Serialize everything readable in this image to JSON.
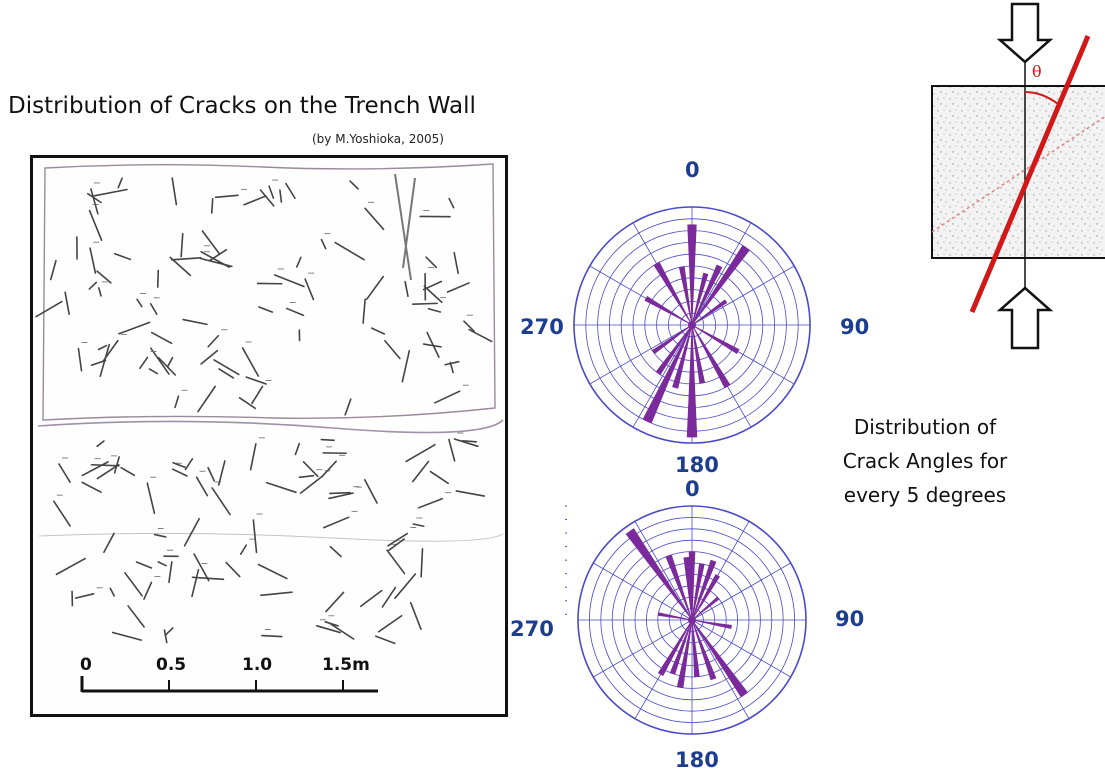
{
  "title": "Distribution of Cracks on the Trench Wall",
  "credit": "(by M.Yoshioka, 2005)",
  "scale_bar": {
    "labels": [
      "0",
      "0.5",
      "1.0",
      "1.5m"
    ]
  },
  "rose_diagrams": [
    {
      "id": "upper",
      "labels": {
        "top": "0",
        "right": "90",
        "bottom": "180",
        "left": "270"
      },
      "petals": [
        {
          "angle": 0,
          "length": 0.85
        },
        {
          "angle": 15,
          "length": 0.45
        },
        {
          "angle": 25,
          "length": 0.55
        },
        {
          "angle": 35,
          "length": 0.8
        },
        {
          "angle": 55,
          "length": 0.35
        },
        {
          "angle": 120,
          "length": 0.45
        },
        {
          "angle": 150,
          "length": 0.6
        },
        {
          "angle": 170,
          "length": 0.5
        },
        {
          "angle": 180,
          "length": 0.95
        },
        {
          "angle": 195,
          "length": 0.55
        },
        {
          "angle": 205,
          "length": 0.9
        },
        {
          "angle": 215,
          "length": 0.5
        },
        {
          "angle": 235,
          "length": 0.4
        },
        {
          "angle": 300,
          "length": 0.45
        },
        {
          "angle": 330,
          "length": 0.6
        },
        {
          "angle": 350,
          "length": 0.5
        }
      ]
    },
    {
      "id": "lower",
      "labels": {
        "top": "0",
        "right": "90",
        "bottom": "180",
        "left": "270"
      },
      "petals": [
        {
          "angle": 0,
          "length": 0.6
        },
        {
          "angle": 10,
          "length": 0.5
        },
        {
          "angle": 20,
          "length": 0.55
        },
        {
          "angle": 30,
          "length": 0.45
        },
        {
          "angle": 50,
          "length": 0.3
        },
        {
          "angle": 100,
          "length": 0.35
        },
        {
          "angle": 145,
          "length": 0.8
        },
        {
          "angle": 160,
          "length": 0.55
        },
        {
          "angle": 175,
          "length": 0.5
        },
        {
          "angle": 190,
          "length": 0.6
        },
        {
          "angle": 200,
          "length": 0.5
        },
        {
          "angle": 210,
          "length": 0.55
        },
        {
          "angle": 280,
          "length": 0.3
        },
        {
          "angle": 325,
          "length": 0.95
        },
        {
          "angle": 340,
          "length": 0.6
        },
        {
          "angle": 355,
          "length": 0.55
        }
      ]
    }
  ],
  "caption": {
    "line1": "Distribution of",
    "line2": "Crack Angles for",
    "line3": "every 5 degrees"
  },
  "schematic": {
    "angle_symbol": "θ"
  },
  "colors": {
    "rose_grid": "#4a4ac8",
    "rose_petal": "#7a2a9a",
    "label_blue": "#1d3d8f",
    "fault_red": "#d01818",
    "crack_stroke": "#444444"
  }
}
